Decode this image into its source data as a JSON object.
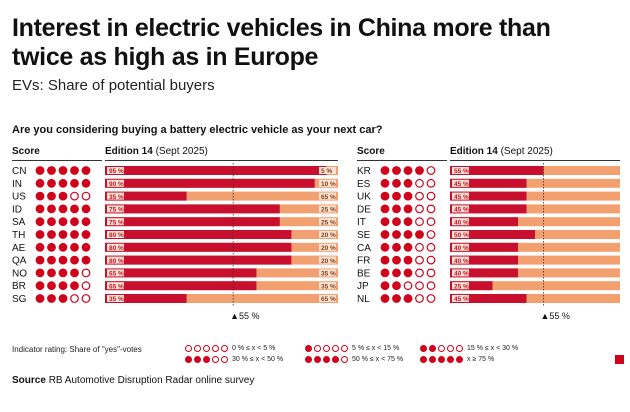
{
  "title": "Interest in electric vehicles in China more than twice as high as in Europe",
  "subtitle": "EVs: Share of potential buyers",
  "question": "Are you considering buying a battery electric vehicle as your next car?",
  "headers": {
    "score": "Score",
    "edition": "Edition 14",
    "edition_date": "(Sept 2025)"
  },
  "reference_label": "▲55 %",
  "legend": {
    "title": "Indicator rating: Share of \"yes\"-votes",
    "items": [
      {
        "label": "0 % ≤ x < 5 %",
        "filled": 0
      },
      {
        "label": "5 % ≤ x < 15 %",
        "filled": 1
      },
      {
        "label": "15 % ≤ x < 30 %",
        "filled": 2
      },
      {
        "label": "30 % ≤ x < 50 %",
        "filled": 3
      },
      {
        "label": "50 % ≤ x < 75 %",
        "filled": 4
      },
      {
        "label": "x ≥ 75 %",
        "filled": 5
      }
    ]
  },
  "source_label": "Source",
  "source_text": "RB Automotive Disruption Radar online survey",
  "colors": {
    "yes": "#c8102e",
    "no": "#f2a070",
    "dot": "#d0021b",
    "label_bg": "#fde3d3"
  },
  "chart_data": {
    "type": "bar",
    "stacked": true,
    "reference_line": 55,
    "xlim": [
      0,
      100
    ],
    "panels": [
      {
        "rows": [
          {
            "country": "CN",
            "yes": 95,
            "no": 5,
            "score": 5
          },
          {
            "country": "IN",
            "yes": 90,
            "no": 10,
            "score": 5
          },
          {
            "country": "US",
            "yes": 35,
            "no": 65,
            "score": 3
          },
          {
            "country": "ID",
            "yes": 75,
            "no": 25,
            "score": 5
          },
          {
            "country": "SA",
            "yes": 75,
            "no": 25,
            "score": 5
          },
          {
            "country": "TH",
            "yes": 80,
            "no": 20,
            "score": 5
          },
          {
            "country": "AE",
            "yes": 80,
            "no": 20,
            "score": 5
          },
          {
            "country": "QA",
            "yes": 80,
            "no": 20,
            "score": 5
          },
          {
            "country": "NO",
            "yes": 65,
            "no": 35,
            "score": 4
          },
          {
            "country": "BR",
            "yes": 65,
            "no": 35,
            "score": 4
          },
          {
            "country": "SG",
            "yes": 35,
            "no": 65,
            "score": 3
          }
        ]
      },
      {
        "rows": [
          {
            "country": "KR",
            "yes": 55,
            "no": null,
            "score": 4
          },
          {
            "country": "ES",
            "yes": 45,
            "no": null,
            "score": 3
          },
          {
            "country": "UK",
            "yes": 45,
            "no": null,
            "score": 3
          },
          {
            "country": "DE",
            "yes": 45,
            "no": null,
            "score": 3
          },
          {
            "country": "IT",
            "yes": 40,
            "no": null,
            "score": 3
          },
          {
            "country": "SE",
            "yes": 50,
            "no": null,
            "score": 4
          },
          {
            "country": "CA",
            "yes": 40,
            "no": null,
            "score": 3
          },
          {
            "country": "FR",
            "yes": 40,
            "no": null,
            "score": 3
          },
          {
            "country": "BE",
            "yes": 40,
            "no": null,
            "score": 3
          },
          {
            "country": "JP",
            "yes": 25,
            "no": null,
            "score": 2
          },
          {
            "country": "NL",
            "yes": 45,
            "no": null,
            "score": 3
          }
        ]
      }
    ]
  }
}
